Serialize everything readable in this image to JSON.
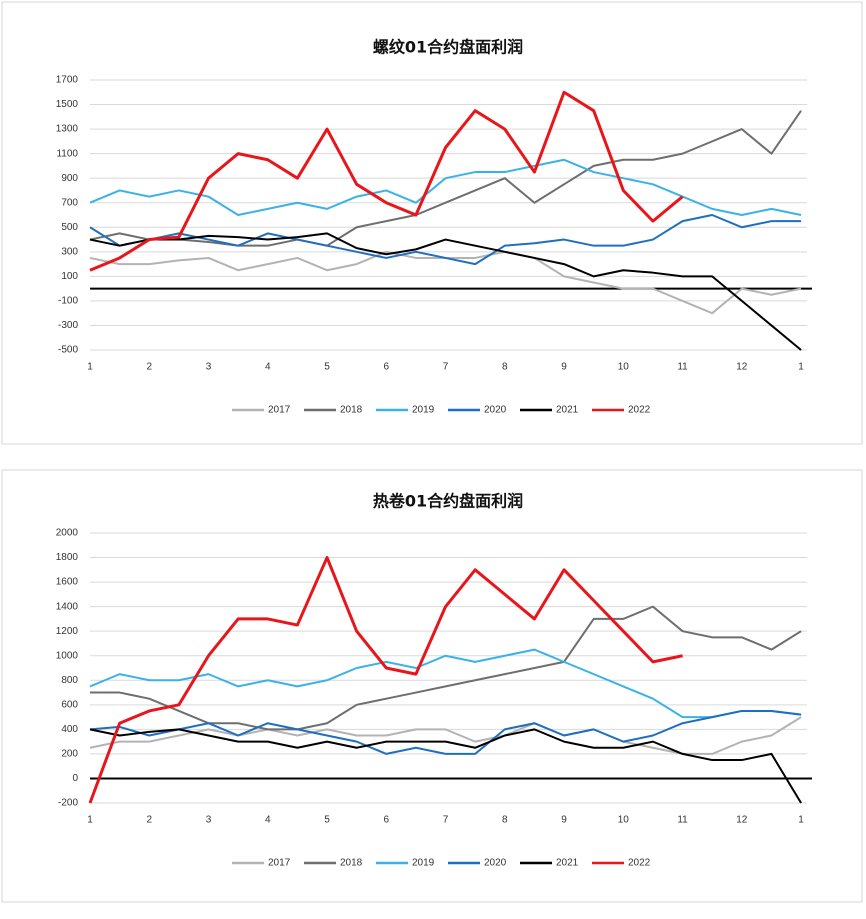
{
  "chart_data": [
    {
      "type": "line",
      "title": "螺纹01合约盘面利润",
      "x": [
        1,
        1.5,
        2,
        2.5,
        3,
        3.5,
        4,
        4.5,
        5,
        5.5,
        6,
        6.5,
        7,
        7.5,
        8,
        8.5,
        9,
        9.5,
        10,
        10.5,
        11,
        11.5,
        12,
        12.5,
        13
      ],
      "xlim": [
        1,
        13.1
      ],
      "xticks": [
        1,
        2,
        3,
        4,
        5,
        6,
        7,
        8,
        9,
        10,
        11,
        12,
        {
          "value": 13,
          "label": "1"
        }
      ],
      "ylim": [
        -500,
        1700
      ],
      "yticks": [
        -500,
        -300,
        -100,
        100,
        300,
        500,
        700,
        900,
        1100,
        1300,
        1500,
        1700
      ],
      "grid": true,
      "legend": "bottom",
      "series": [
        {
          "name": "2017",
          "color": "#b3b3b3",
          "values": [
            250,
            200,
            200,
            230,
            250,
            150,
            200,
            250,
            150,
            200,
            300,
            250,
            250,
            250,
            300,
            250,
            100,
            50,
            0,
            0,
            -100,
            -200,
            0,
            -50,
            0
          ]
        },
        {
          "name": "2018",
          "color": "#6e6e6e",
          "values": [
            400,
            450,
            400,
            400,
            380,
            350,
            350,
            400,
            350,
            500,
            550,
            600,
            700,
            800,
            900,
            700,
            850,
            1000,
            1050,
            1050,
            1100,
            1200,
            1300,
            1100,
            1450
          ]
        },
        {
          "name": "2019",
          "color": "#3ab2e8",
          "values": [
            700,
            800,
            750,
            800,
            750,
            600,
            650,
            700,
            650,
            750,
            800,
            700,
            900,
            950,
            950,
            1000,
            1050,
            950,
            900,
            850,
            750,
            650,
            600,
            650,
            600
          ]
        },
        {
          "name": "2020",
          "color": "#1f6fc0",
          "values": [
            500,
            350,
            400,
            450,
            400,
            350,
            450,
            400,
            350,
            300,
            250,
            300,
            250,
            200,
            350,
            370,
            400,
            350,
            350,
            400,
            550,
            600,
            500,
            550,
            550
          ]
        },
        {
          "name": "2021",
          "color": "#000000",
          "values": [
            400,
            350,
            400,
            400,
            430,
            420,
            400,
            420,
            450,
            330,
            280,
            320,
            400,
            350,
            300,
            250,
            200,
            100,
            150,
            130,
            100,
            100,
            -100,
            -300,
            -500
          ]
        },
        {
          "name": "2022",
          "color": "#e8161b",
          "values": [
            150,
            250,
            400,
            420,
            900,
            1100,
            1050,
            900,
            1300,
            850,
            700,
            600,
            1150,
            1450,
            1300,
            950,
            1600,
            1450,
            800,
            550,
            750,
            null,
            null,
            null,
            null
          ]
        }
      ]
    },
    {
      "type": "line",
      "title": "热卷01合约盘面利润",
      "x": [
        1,
        1.5,
        2,
        2.5,
        3,
        3.5,
        4,
        4.5,
        5,
        5.5,
        6,
        6.5,
        7,
        7.5,
        8,
        8.5,
        9,
        9.5,
        10,
        10.5,
        11,
        11.5,
        12,
        12.5,
        13
      ],
      "xlim": [
        1,
        13.1
      ],
      "xticks": [
        1,
        2,
        3,
        4,
        5,
        6,
        7,
        8,
        9,
        10,
        11,
        12,
        {
          "value": 13,
          "label": "1"
        }
      ],
      "ylim": [
        -200,
        2000
      ],
      "yticks": [
        -200,
        0,
        200,
        400,
        600,
        800,
        1000,
        1200,
        1400,
        1600,
        1800,
        2000
      ],
      "grid": true,
      "legend": "bottom",
      "series": [
        {
          "name": "2017",
          "color": "#b3b3b3",
          "values": [
            250,
            300,
            300,
            350,
            400,
            350,
            400,
            350,
            400,
            350,
            350,
            400,
            400,
            300,
            350,
            450,
            350,
            400,
            300,
            250,
            200,
            200,
            300,
            350,
            500
          ]
        },
        {
          "name": "2018",
          "color": "#6e6e6e",
          "values": [
            700,
            700,
            650,
            550,
            450,
            450,
            400,
            400,
            450,
            600,
            650,
            700,
            750,
            800,
            850,
            900,
            950,
            1300,
            1300,
            1400,
            1200,
            1150,
            1150,
            1050,
            1200
          ]
        },
        {
          "name": "2019",
          "color": "#3ab2e8",
          "values": [
            750,
            850,
            800,
            800,
            850,
            750,
            800,
            750,
            800,
            900,
            950,
            900,
            1000,
            950,
            1000,
            1050,
            950,
            850,
            750,
            650,
            500,
            500,
            550,
            550,
            520
          ]
        },
        {
          "name": "2020",
          "color": "#1f6fc0",
          "values": [
            400,
            420,
            350,
            400,
            450,
            350,
            450,
            400,
            350,
            300,
            200,
            250,
            200,
            200,
            400,
            450,
            350,
            400,
            300,
            350,
            450,
            500,
            550,
            550,
            520
          ]
        },
        {
          "name": "2021",
          "color": "#000000",
          "values": [
            400,
            350,
            380,
            400,
            350,
            300,
            300,
            250,
            300,
            250,
            300,
            300,
            300,
            250,
            350,
            400,
            300,
            250,
            250,
            300,
            200,
            150,
            150,
            200,
            -200
          ]
        },
        {
          "name": "2022",
          "color": "#e8161b",
          "values": [
            -200,
            450,
            550,
            600,
            1000,
            1300,
            1300,
            1250,
            1800,
            1200,
            900,
            850,
            1400,
            1700,
            1500,
            1300,
            1700,
            1450,
            1200,
            950,
            1000,
            null,
            null,
            null,
            null
          ]
        }
      ]
    }
  ]
}
